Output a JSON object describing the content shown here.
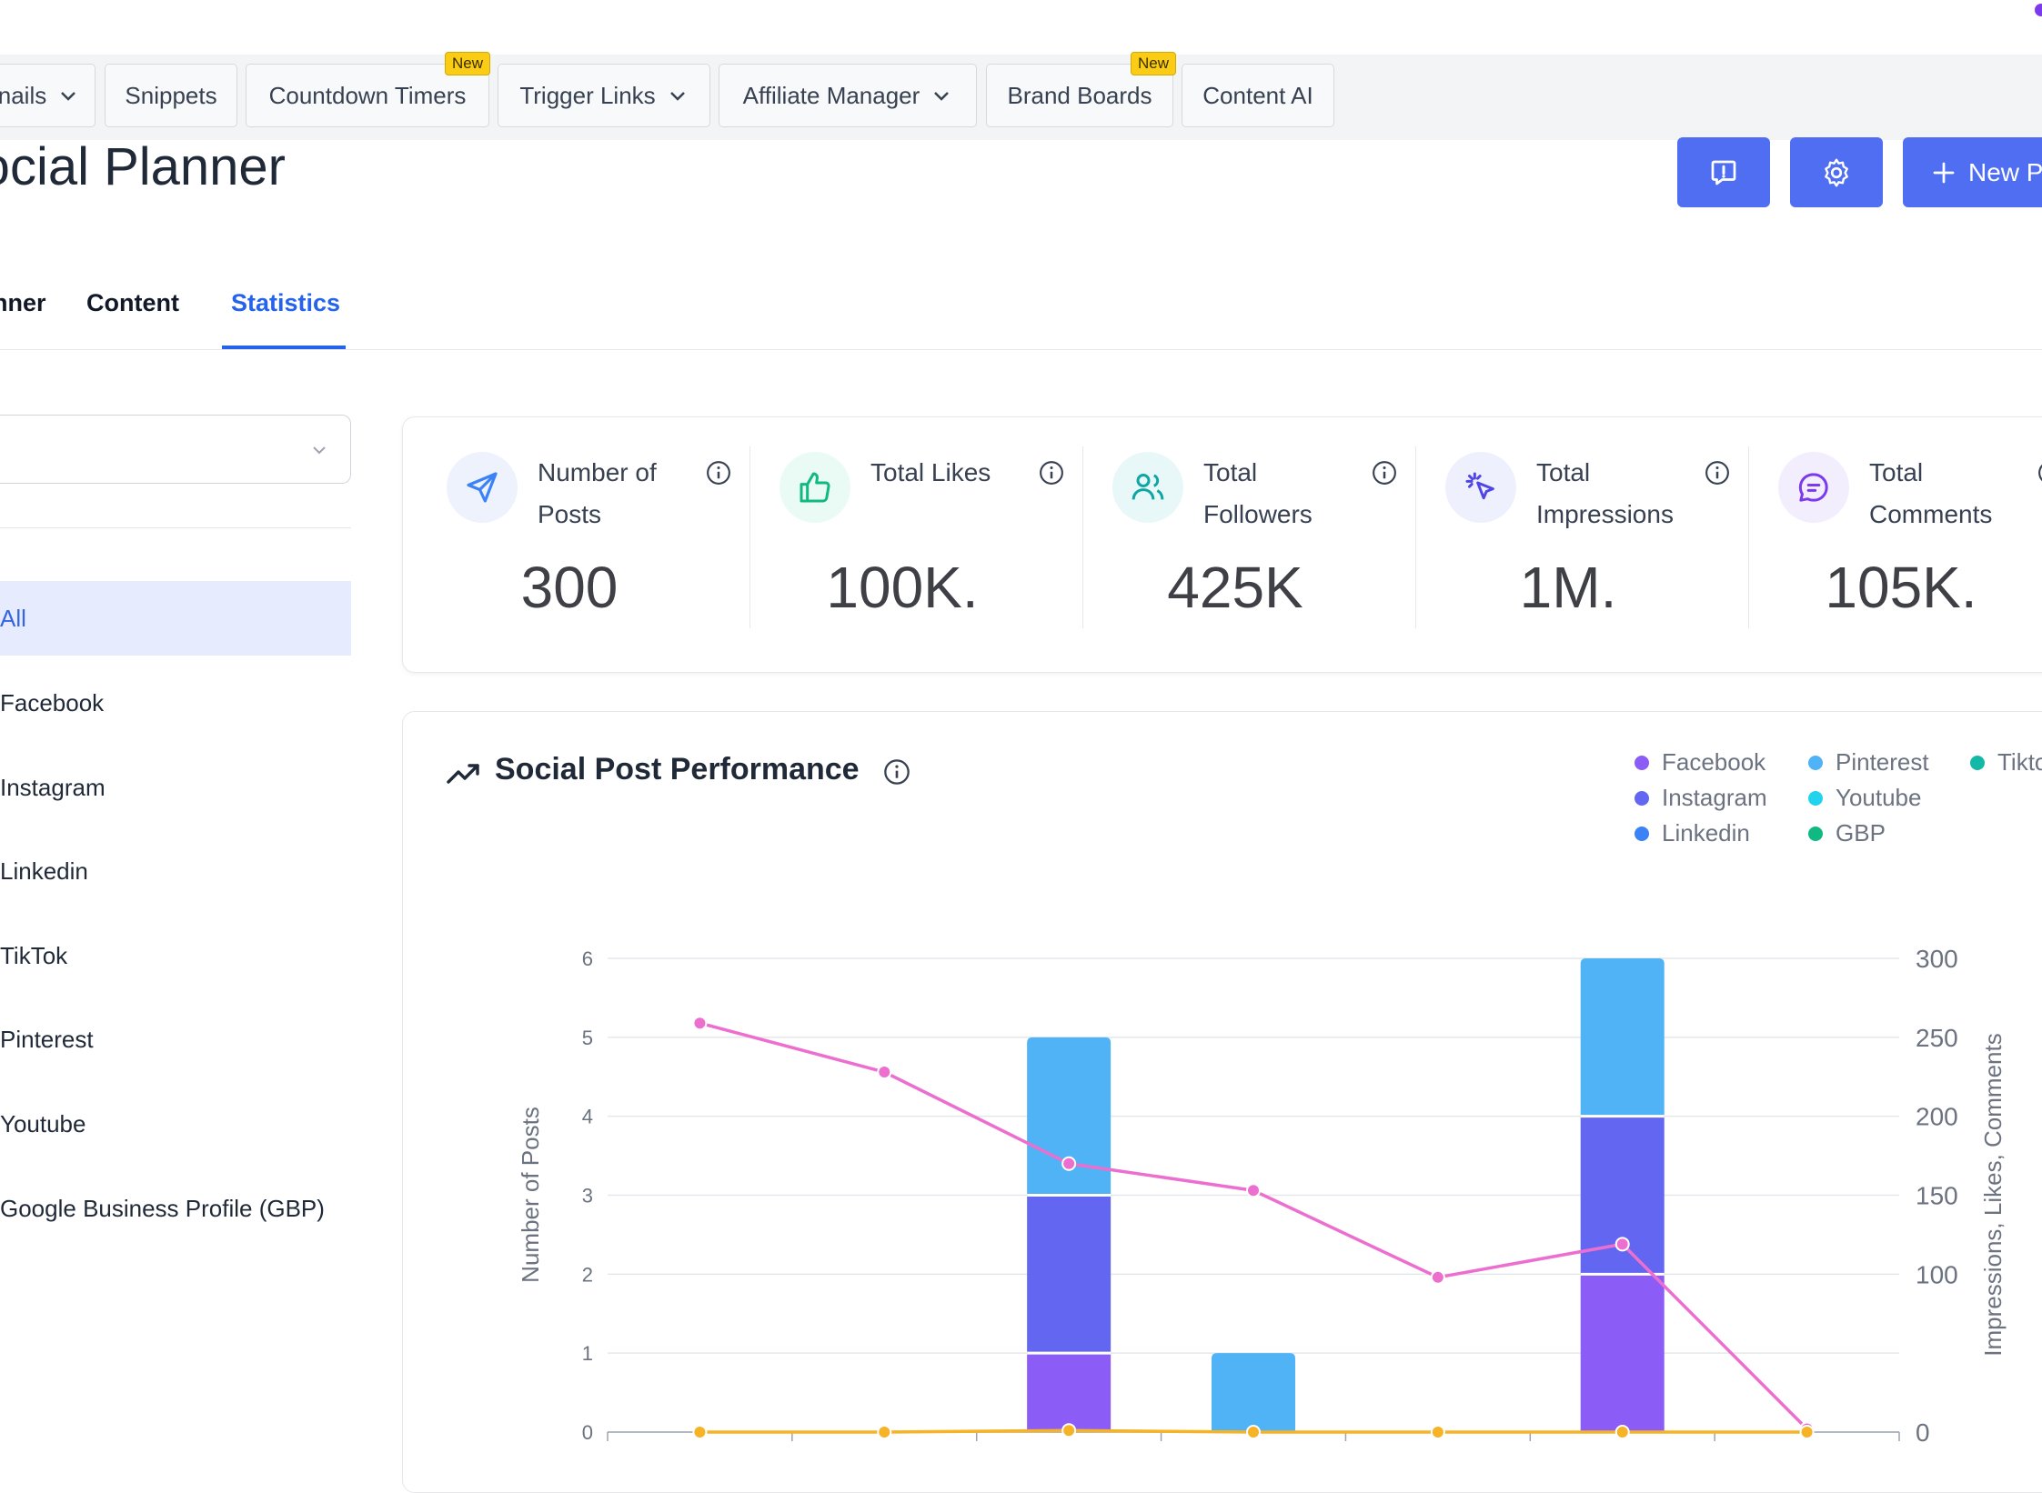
{
  "nav": {
    "items": [
      {
        "label": "nails",
        "chevron": true,
        "badge": ""
      },
      {
        "label": "Snippets",
        "chevron": false,
        "badge": ""
      },
      {
        "label": "Countdown Timers",
        "chevron": false,
        "badge": "New"
      },
      {
        "label": "Trigger Links",
        "chevron": true,
        "badge": ""
      },
      {
        "label": "Affiliate Manager",
        "chevron": true,
        "badge": ""
      },
      {
        "label": "Brand Boards",
        "chevron": false,
        "badge": "New"
      },
      {
        "label": "Content AI",
        "chevron": false,
        "badge": ""
      }
    ]
  },
  "header": {
    "title": "Social Planner",
    "new_post_label": "New P",
    "feedback_icon": "feedback-icon",
    "settings_icon": "gear-icon"
  },
  "tabs": [
    {
      "label": "nner"
    },
    {
      "label": "Content"
    },
    {
      "label": "Statistics",
      "active": true
    }
  ],
  "sidebar": {
    "select_value": "",
    "items": [
      {
        "label": "All",
        "active": true
      },
      {
        "label": "Facebook"
      },
      {
        "label": "Instagram"
      },
      {
        "label": "Linkedin"
      },
      {
        "label": "TikTok"
      },
      {
        "label": "Pinterest"
      },
      {
        "label": "Youtube"
      },
      {
        "label": "Google Business Profile (GBP)"
      }
    ]
  },
  "stats": [
    {
      "label": "Number of Posts",
      "value": "300",
      "icon": "send-icon",
      "color": "#3b82f6",
      "bg": "#eef2fc"
    },
    {
      "label": "Total Likes",
      "value": "100K.",
      "icon": "thumbs-up-icon",
      "color": "#10b981",
      "bg": "#eafaf4"
    },
    {
      "label": "Total Followers",
      "value": "425K",
      "icon": "users-icon",
      "color": "#0ea5a5",
      "bg": "#e8f8f8"
    },
    {
      "label": "Total Impressions",
      "value": "1M.",
      "icon": "cursor-click-icon",
      "color": "#4f46e5",
      "bg": "#eef0fd"
    },
    {
      "label": "Total Comments",
      "value": "105K.",
      "icon": "message-icon",
      "color": "#7c3aed",
      "bg": "#f3eefd"
    }
  ],
  "chart_data": {
    "type": "bar",
    "title": "Social Post Performance",
    "ylabel": "Number of Posts",
    "y2label": "Impressions, Likes, Comments",
    "ylim": [
      0,
      6
    ],
    "y2lim": [
      0,
      300
    ],
    "yticks": [
      0,
      1,
      2,
      3,
      4,
      5,
      6
    ],
    "y2ticks": [
      0,
      100,
      150,
      200,
      250,
      300
    ],
    "x_count": 7,
    "grid": true,
    "legend_position": "top-right",
    "legend": [
      {
        "name": "Facebook",
        "color": "#8b5cf6"
      },
      {
        "name": "Pinterest",
        "color": "#4fb3f6"
      },
      {
        "name": "Tikto",
        "color": "#14b8a6"
      },
      {
        "name": "Instagram",
        "color": "#6366f1"
      },
      {
        "name": "Youtube",
        "color": "#22d3ee"
      },
      {
        "name": "Linkedin",
        "color": "#3b82f6"
      },
      {
        "name": "GBP",
        "color": "#10b981"
      }
    ],
    "bar_series": [
      {
        "color": "#8b5cf6",
        "values": [
          0,
          0,
          1,
          0,
          0,
          2,
          0
        ]
      },
      {
        "color": "#6366f1",
        "values": [
          0,
          0,
          2,
          0,
          0,
          2,
          0
        ]
      },
      {
        "color": "#4fb3f6",
        "values": [
          0,
          0,
          2,
          1,
          0,
          2,
          0
        ]
      }
    ],
    "line_series": [
      {
        "color": "#ec6fcf",
        "axis": "right",
        "values": [
          259,
          228,
          170,
          153,
          98,
          119,
          2
        ]
      },
      {
        "color": "#f5b325",
        "axis": "right",
        "values": [
          0,
          0,
          1,
          0,
          0,
          0,
          0
        ]
      }
    ]
  }
}
